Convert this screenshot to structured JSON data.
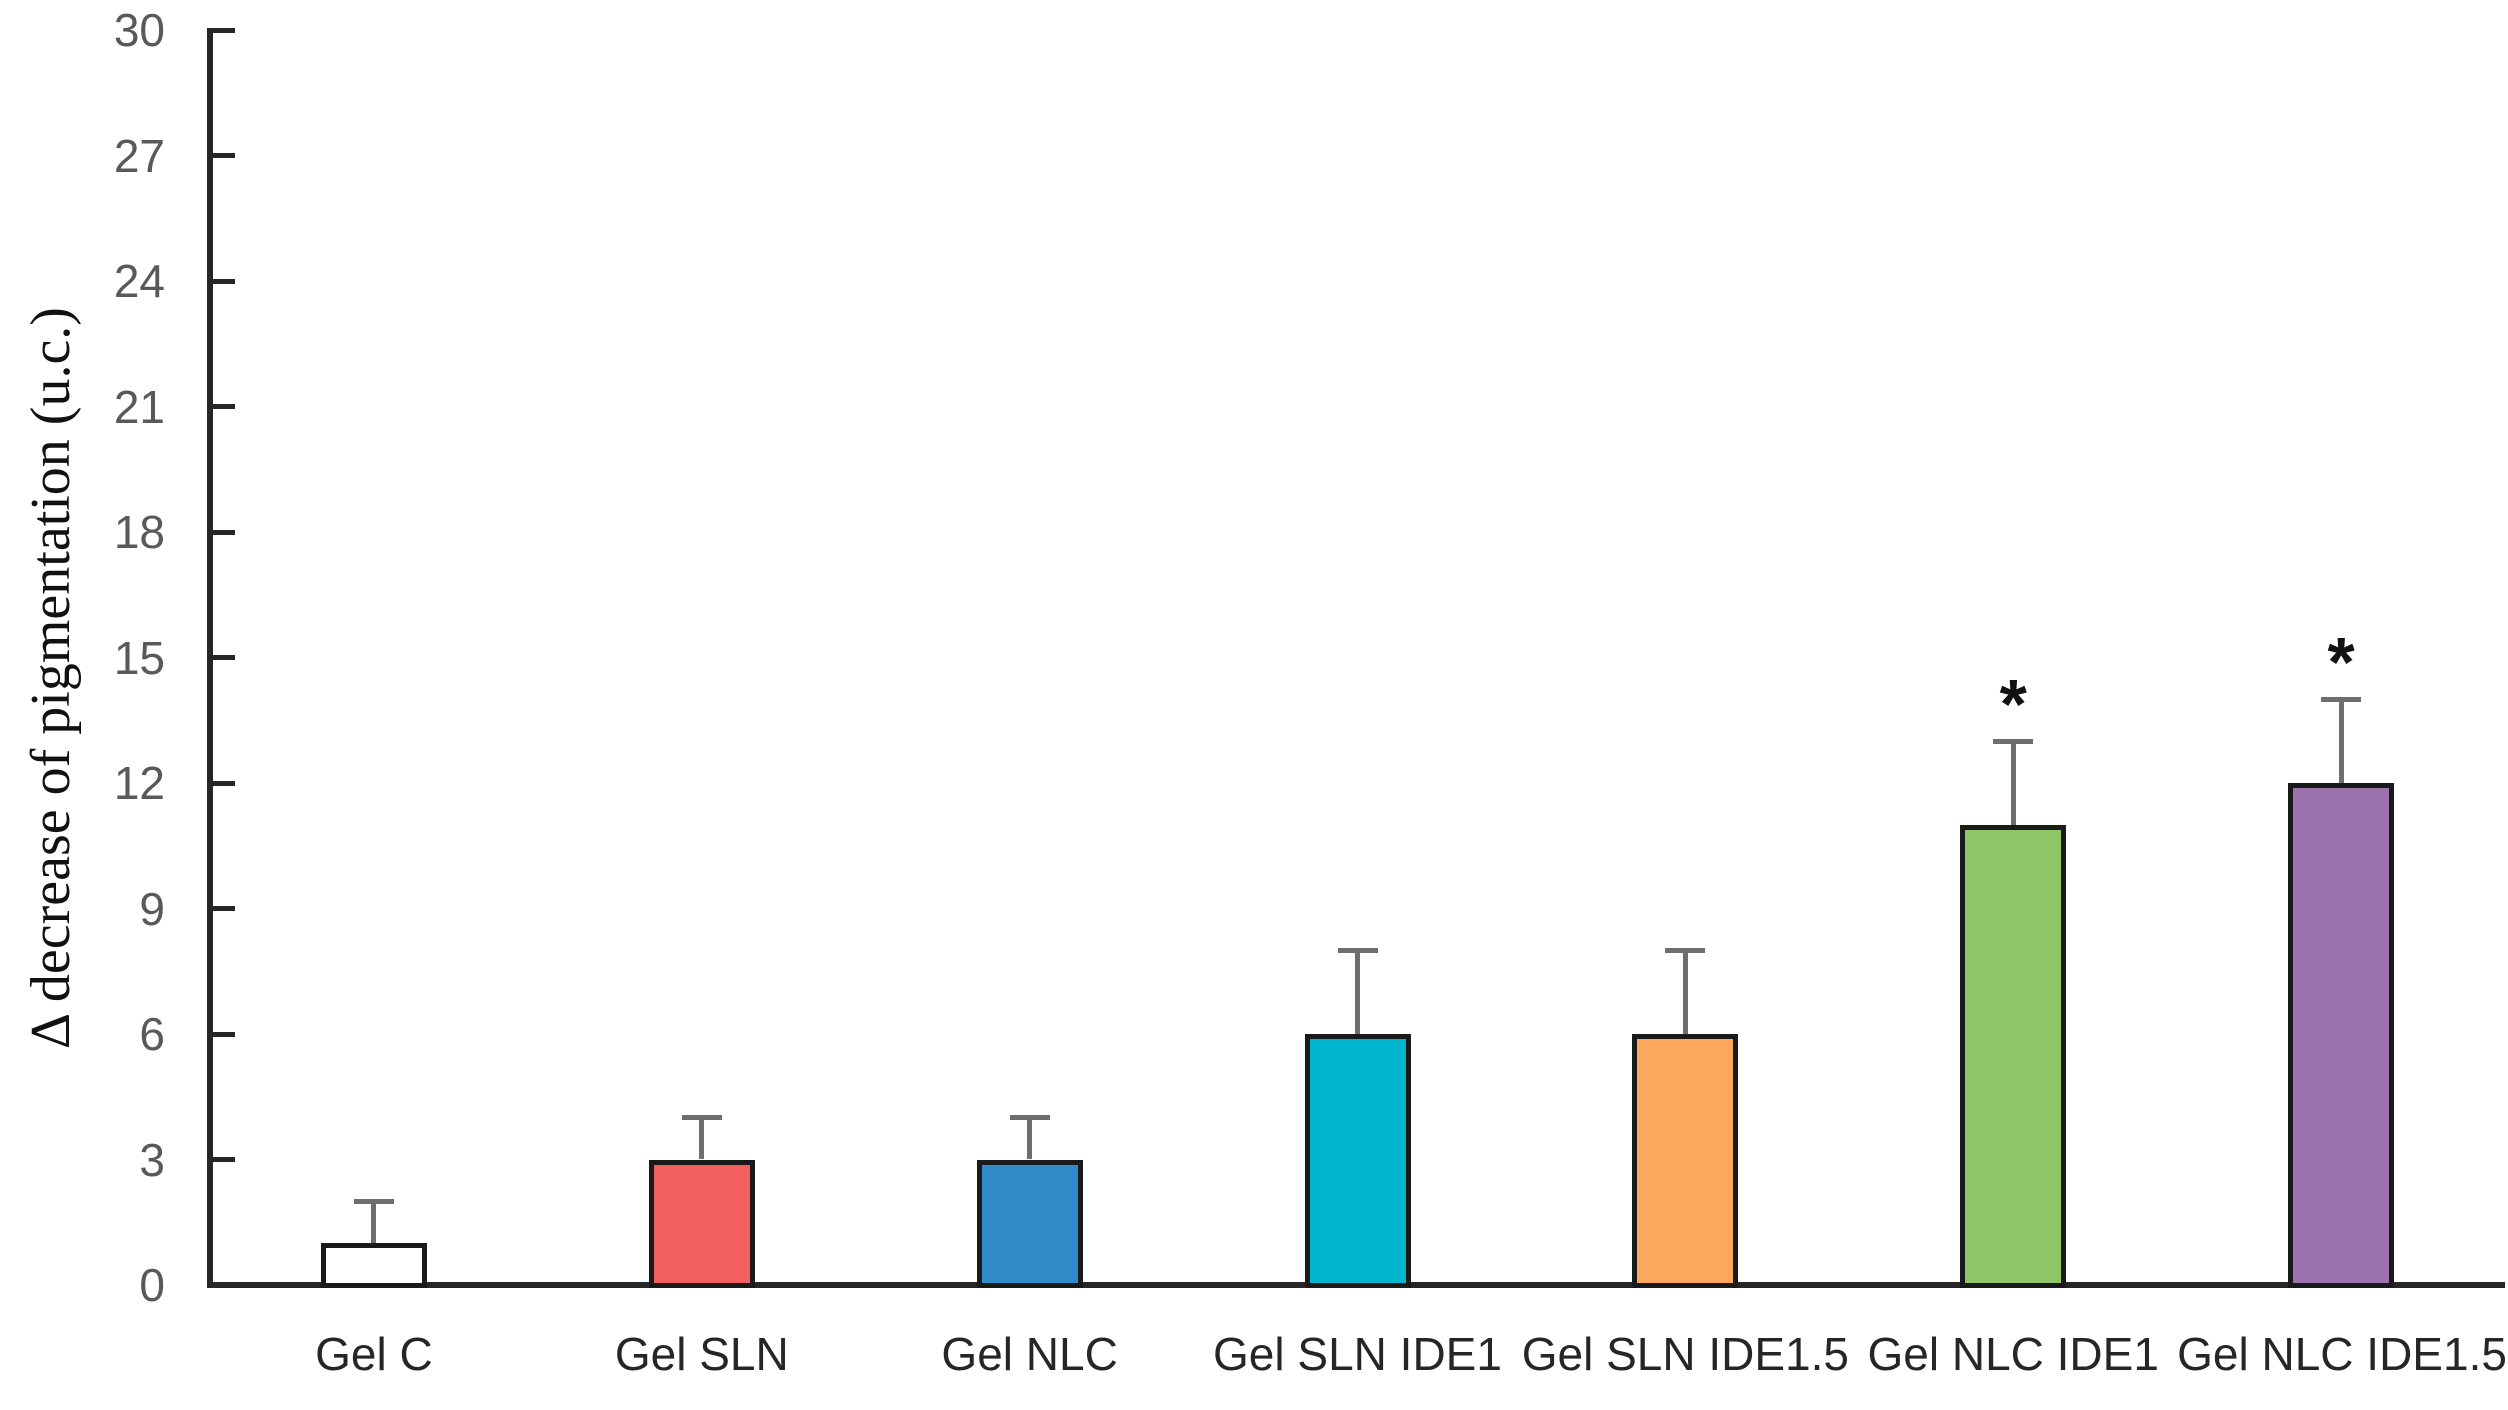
{
  "chart_data": {
    "type": "bar",
    "title": "",
    "xlabel": "",
    "ylabel": "Δ decrease of pigmentation (u.c.)",
    "ylim": [
      0,
      30
    ],
    "yticks": [
      0,
      3,
      6,
      9,
      12,
      15,
      18,
      21,
      24,
      27,
      30
    ],
    "grid": false,
    "legend_position": "none",
    "categories": [
      "Gel C",
      "Gel SLN",
      "Gel NLC",
      "Gel SLN IDE1",
      "Gel SLN IDE1.5",
      "Gel NLC IDE1",
      "Gel NLC IDE1.5"
    ],
    "series": [
      {
        "name": "decrease of pigmentation",
        "values": [
          1,
          3,
          3,
          6,
          6,
          11,
          12
        ],
        "error_plus": [
          1,
          1,
          1,
          2,
          2,
          2,
          2
        ]
      }
    ],
    "significance_flags": [
      false,
      false,
      false,
      false,
      false,
      true,
      true
    ],
    "significance_symbol": "*",
    "bar_colors": [
      "#ffffff",
      "#f2615f",
      "#2f8cc9",
      "#00b5ce",
      "#fca85c",
      "#8ec567",
      "#9c72ae"
    ],
    "bar_border_color": "#1a1a1a",
    "error_bar_color": "#6e6e6e",
    "axis_color": "#262626",
    "tick_label_color": "#595959",
    "category_label_color": "#262626"
  }
}
